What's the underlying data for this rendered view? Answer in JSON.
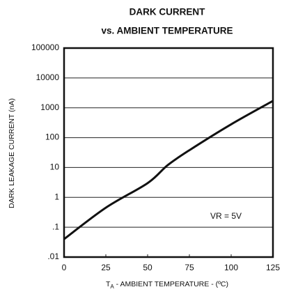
{
  "chart_data": {
    "type": "line",
    "title": [
      "DARK CURRENT",
      "vs. AMBIENT TEMPERATURE"
    ],
    "y_label": "DARK LEAKAGE CURRENT (nA)",
    "x_label": [
      "T",
      "A",
      " - AMBIENT TEMPERATURE - (ºC)"
    ],
    "annotation": "VR = 5V",
    "x": [
      0,
      25,
      50,
      62,
      75,
      100,
      125
    ],
    "values": [
      0.04,
      0.45,
      3,
      12,
      38,
      280,
      1700
    ],
    "color": "#111111",
    "xlim": [
      0,
      125
    ],
    "xticks": [
      0,
      25,
      50,
      75,
      100,
      125
    ],
    "ylim": [
      0.01,
      100000
    ],
    "yticks": [
      {
        "value": 0.01,
        "label": ".01"
      },
      {
        "value": 0.1,
        "label": ".1"
      },
      1,
      10,
      100,
      1000,
      10000,
      100000
    ],
    "y_log": true,
    "grid": true
  }
}
